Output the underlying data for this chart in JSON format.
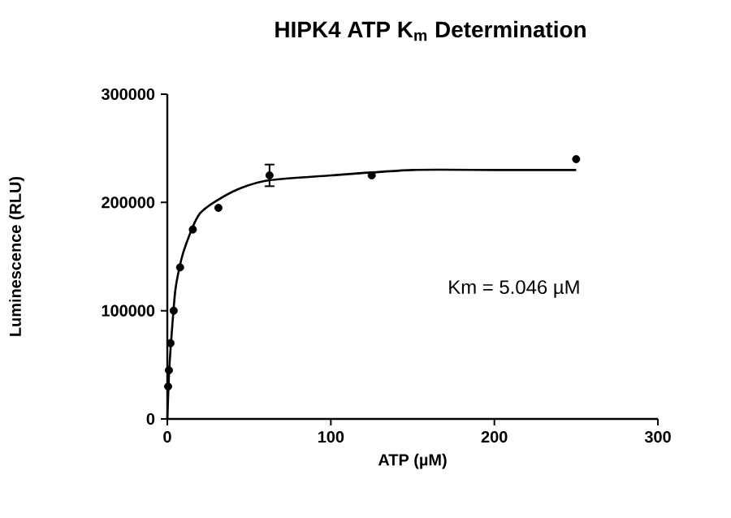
{
  "chart_data": {
    "type": "scatter",
    "title": "HIPK4 ATP K$_{m}$ Determination",
    "xlabel": "ATP (µM)",
    "ylabel": "Luminescence (RLU)",
    "annotations": [
      "Km = 5.046 µM"
    ],
    "xlim": [
      0,
      300
    ],
    "xticks": [
      0,
      100,
      200,
      300
    ],
    "ylim": [
      0,
      300000
    ],
    "yticks": [
      0,
      100000,
      200000,
      300000
    ],
    "marker": "circle",
    "series": [
      {
        "color": "#000000",
        "x": [
          0.49,
          0.98,
          1.95,
          3.9,
          7.8,
          15.6,
          31.25,
          62.5,
          125,
          250
        ],
        "values": [
          30000,
          45000,
          70000,
          100000,
          140000,
          175000,
          195000,
          225000,
          225000,
          240000
        ],
        "errors": [
          null,
          null,
          null,
          null,
          null,
          null,
          null,
          10000,
          null,
          null
        ]
      },
      {
        "type": "line",
        "marker": "none",
        "color": "#000000",
        "x": [
          0,
          1,
          2,
          5,
          10,
          20,
          40,
          60,
          100,
          150,
          200,
          250
        ],
        "values": [
          0,
          40000,
          65000,
          120000,
          155000,
          190000,
          210000,
          220000,
          225000,
          230000,
          230000,
          230000
        ]
      }
    ]
  }
}
